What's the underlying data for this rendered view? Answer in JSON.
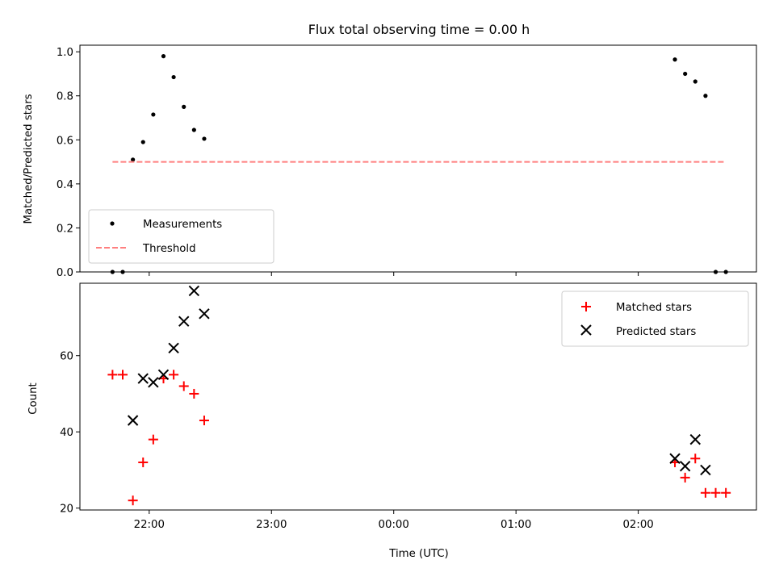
{
  "chart_data": [
    {
      "type": "scatter",
      "title": "Flux total observing time = 0.00 h",
      "ylabel": "Matched/Predicted stars",
      "ylim": [
        0,
        1.03
      ],
      "yticks": [
        0.0,
        0.2,
        0.4,
        0.6,
        0.8,
        1.0
      ],
      "ytick_labels": [
        "0.0",
        "0.2",
        "0.4",
        "0.6",
        "0.8",
        "1.0"
      ],
      "xlim": [
        "21:26",
        "02:58"
      ],
      "xticks": [
        "22:00",
        "23:00",
        "00:00",
        "01:00",
        "02:00"
      ],
      "grid": false,
      "legend": {
        "placement": "lower-left",
        "entries": [
          "Measurements",
          "Threshold"
        ]
      },
      "series": [
        {
          "name": "Measurements",
          "marker": "dot",
          "color": "#000000",
          "points": [
            {
              "x": "21:42",
              "y": 0.0
            },
            {
              "x": "21:47",
              "y": 0.0
            },
            {
              "x": "21:52",
              "y": 0.51
            },
            {
              "x": "21:57",
              "y": 0.59
            },
            {
              "x": "22:02",
              "y": 0.715
            },
            {
              "x": "22:07",
              "y": 0.98
            },
            {
              "x": "22:12",
              "y": 0.885
            },
            {
              "x": "22:17",
              "y": 0.75
            },
            {
              "x": "22:22",
              "y": 0.645
            },
            {
              "x": "22:27",
              "y": 0.605
            },
            {
              "x": "02:18",
              "y": 0.965
            },
            {
              "x": "02:23",
              "y": 0.9
            },
            {
              "x": "02:28",
              "y": 0.865
            },
            {
              "x": "02:33",
              "y": 0.8
            },
            {
              "x": "02:38",
              "y": 0.0
            },
            {
              "x": "02:43",
              "y": 0.0
            }
          ]
        },
        {
          "name": "Threshold",
          "marker": "dashed-line",
          "color": "#ff7f7f",
          "points": [
            {
              "x": "21:42",
              "y": 0.5
            },
            {
              "x": "02:43",
              "y": 0.5
            }
          ]
        }
      ]
    },
    {
      "type": "scatter",
      "xlabel": "Time (UTC)",
      "ylabel": "Count",
      "ylim": [
        19.5,
        79
      ],
      "yticks": [
        20,
        40,
        60
      ],
      "ytick_labels": [
        "20",
        "40",
        "60"
      ],
      "xlim": [
        "21:26",
        "02:58"
      ],
      "xticks": [
        "22:00",
        "23:00",
        "00:00",
        "01:00",
        "02:00"
      ],
      "xtick_labels": [
        "22:00",
        "23:00",
        "00:00",
        "01:00",
        "02:00"
      ],
      "grid": false,
      "legend": {
        "placement": "upper-right",
        "entries": [
          "Matched stars",
          "Predicted stars"
        ]
      },
      "series": [
        {
          "name": "Matched stars",
          "marker": "plus",
          "color": "#ff0000",
          "points": [
            {
              "x": "21:42",
              "y": 55
            },
            {
              "x": "21:47",
              "y": 55
            },
            {
              "x": "21:52",
              "y": 22
            },
            {
              "x": "21:57",
              "y": 32
            },
            {
              "x": "22:02",
              "y": 38
            },
            {
              "x": "22:07",
              "y": 54
            },
            {
              "x": "22:12",
              "y": 55
            },
            {
              "x": "22:17",
              "y": 52
            },
            {
              "x": "22:22",
              "y": 50
            },
            {
              "x": "22:27",
              "y": 43
            },
            {
              "x": "02:18",
              "y": 32
            },
            {
              "x": "02:23",
              "y": 28
            },
            {
              "x": "02:28",
              "y": 33
            },
            {
              "x": "02:33",
              "y": 24
            },
            {
              "x": "02:38",
              "y": 24
            },
            {
              "x": "02:43",
              "y": 24
            }
          ]
        },
        {
          "name": "Predicted stars",
          "marker": "x",
          "color": "#000000",
          "points": [
            {
              "x": "21:52",
              "y": 43
            },
            {
              "x": "21:57",
              "y": 54
            },
            {
              "x": "22:02",
              "y": 53
            },
            {
              "x": "22:07",
              "y": 55
            },
            {
              "x": "22:12",
              "y": 62
            },
            {
              "x": "22:17",
              "y": 69
            },
            {
              "x": "22:22",
              "y": 77
            },
            {
              "x": "22:27",
              "y": 71
            },
            {
              "x": "02:18",
              "y": 33
            },
            {
              "x": "02:23",
              "y": 31
            },
            {
              "x": "02:28",
              "y": 38
            },
            {
              "x": "02:33",
              "y": 30
            }
          ]
        }
      ]
    }
  ]
}
